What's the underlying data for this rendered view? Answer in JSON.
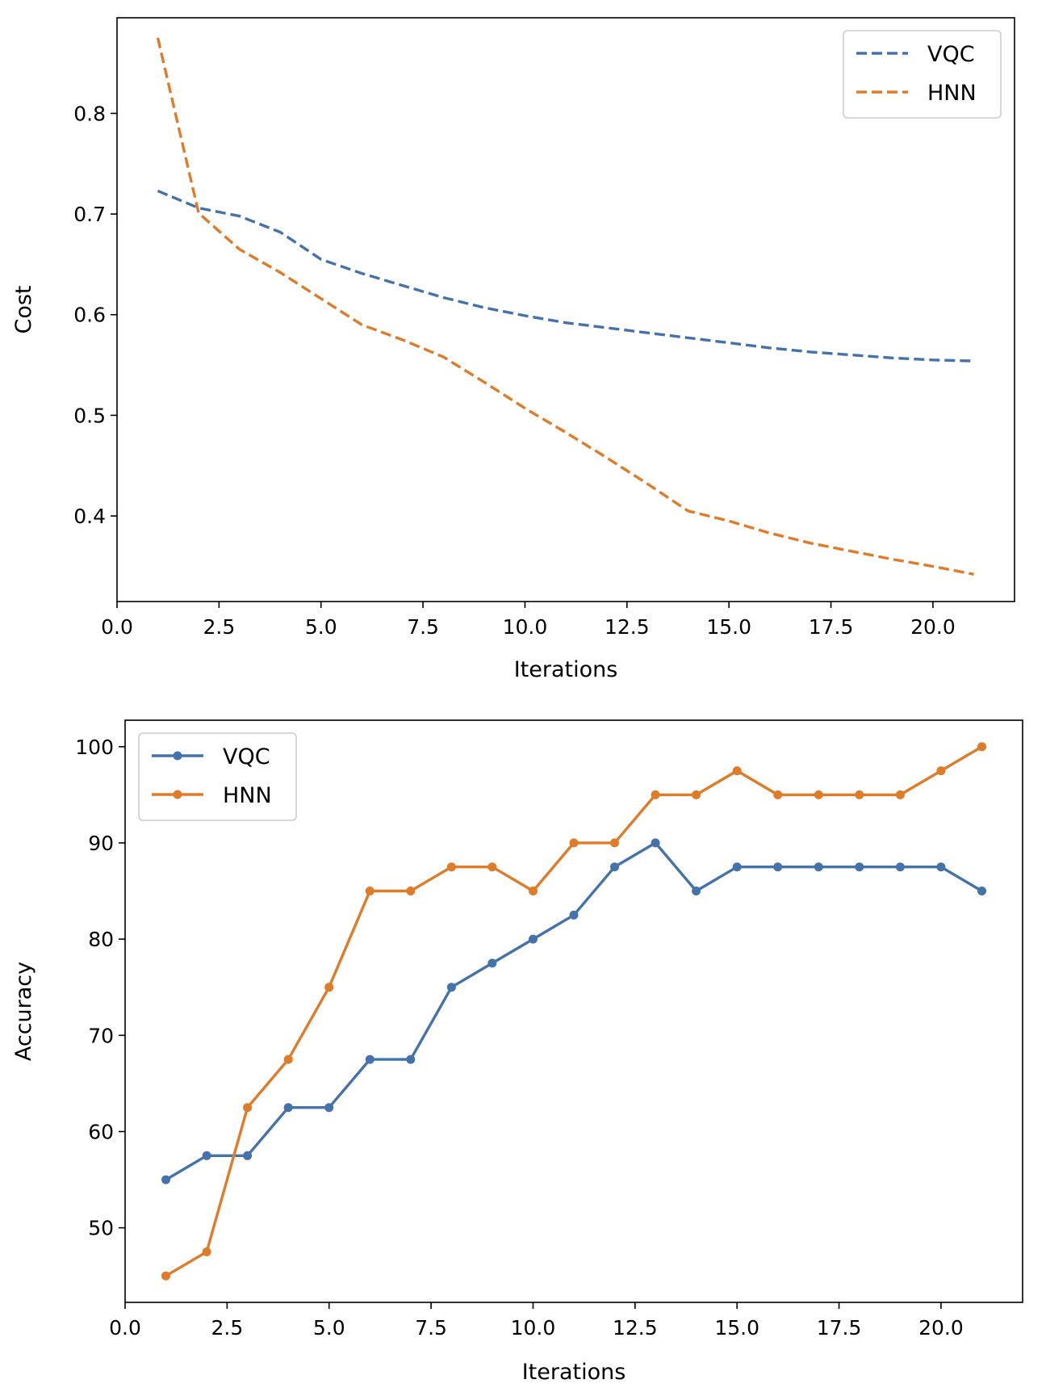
{
  "chart_data": [
    {
      "type": "line",
      "title": "",
      "xlabel": "Iterations",
      "ylabel": "Cost",
      "xlim": [
        0,
        22
      ],
      "ylim": [
        0.315,
        0.895
      ],
      "xticks": [
        0.0,
        2.5,
        5.0,
        7.5,
        10.0,
        12.5,
        15.0,
        17.5,
        20.0
      ],
      "xtick_labels": [
        "0.0",
        "2.5",
        "5.0",
        "7.5",
        "10.0",
        "12.5",
        "15.0",
        "17.5",
        "20.0"
      ],
      "yticks": [
        0.4,
        0.5,
        0.6,
        0.7,
        0.8
      ],
      "ytick_labels": [
        "0.4",
        "0.5",
        "0.6",
        "0.7",
        "0.8"
      ],
      "grid": false,
      "legend_position": "top-right",
      "line_style": "dashed",
      "markers": false,
      "x": [
        1,
        2,
        3,
        4,
        5,
        6,
        7,
        8,
        9,
        10,
        11,
        12,
        13,
        14,
        15,
        16,
        17,
        18,
        19,
        20,
        21
      ],
      "series": [
        {
          "name": "VQC",
          "color": "#4472aa",
          "values": [
            0.723,
            0.706,
            0.698,
            0.682,
            0.655,
            0.641,
            0.629,
            0.617,
            0.607,
            0.599,
            0.592,
            0.587,
            0.582,
            0.577,
            0.572,
            0.567,
            0.563,
            0.56,
            0.557,
            0.555,
            0.554
          ]
        },
        {
          "name": "HNN",
          "color": "#e07b28",
          "values": [
            0.875,
            0.701,
            0.665,
            0.642,
            0.616,
            0.59,
            0.575,
            0.558,
            0.533,
            0.507,
            0.483,
            0.458,
            0.432,
            0.405,
            0.395,
            0.383,
            0.373,
            0.365,
            0.357,
            0.35,
            0.342
          ]
        }
      ]
    },
    {
      "type": "line",
      "title": "",
      "xlabel": "Iterations",
      "ylabel": "Accuracy",
      "xlim": [
        0,
        22
      ],
      "ylim": [
        42.25,
        102.75
      ],
      "xticks": [
        0.0,
        2.5,
        5.0,
        7.5,
        10.0,
        12.5,
        15.0,
        17.5,
        20.0
      ],
      "xtick_labels": [
        "0.0",
        "2.5",
        "5.0",
        "7.5",
        "10.0",
        "12.5",
        "15.0",
        "17.5",
        "20.0"
      ],
      "yticks": [
        50,
        60,
        70,
        80,
        90,
        100
      ],
      "ytick_labels": [
        "50",
        "60",
        "70",
        "80",
        "90",
        "100"
      ],
      "grid": false,
      "legend_position": "top-left",
      "line_style": "solid",
      "markers": true,
      "x": [
        1,
        2,
        3,
        4,
        5,
        6,
        7,
        8,
        9,
        10,
        11,
        12,
        13,
        14,
        15,
        16,
        17,
        18,
        19,
        20,
        21
      ],
      "series": [
        {
          "name": "VQC",
          "color": "#4472aa",
          "values": [
            55,
            57.5,
            57.5,
            62.5,
            62.5,
            67.5,
            67.5,
            75,
            77.5,
            80,
            82.5,
            87.5,
            90,
            85,
            87.5,
            87.5,
            87.5,
            87.5,
            87.5,
            87.5,
            85
          ]
        },
        {
          "name": "HNN",
          "color": "#e07b28",
          "values": [
            45,
            47.5,
            62.5,
            67.5,
            75,
            85,
            85,
            87.5,
            87.5,
            85,
            90,
            90,
            95,
            95,
            97.5,
            95,
            95,
            95,
            95,
            97.5,
            100
          ]
        }
      ]
    }
  ]
}
